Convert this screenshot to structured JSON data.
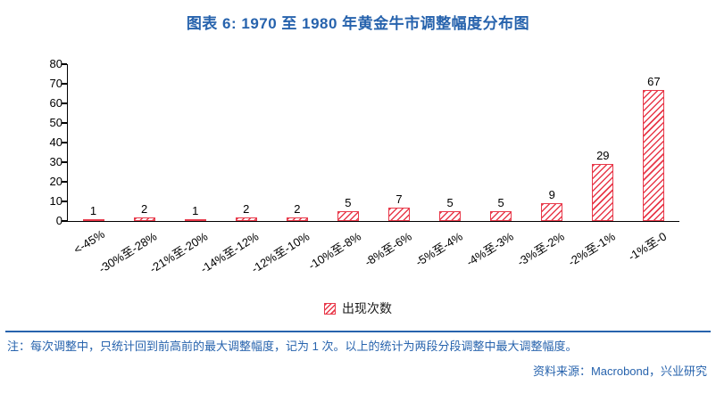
{
  "title": "图表 6:  1970 至 1980 年黄金牛市调整幅度分布图",
  "chart_data": {
    "type": "bar",
    "title": "图表 6:  1970 至 1980 年黄金牛市调整幅度分布图",
    "categories": [
      "<-45%",
      "-30%至-28%",
      "-21%至-20%",
      "-14%至-12%",
      "-12%至-10%",
      "-10%至-8%",
      "-8%至-6%",
      "-5%至-4%",
      "-4%至-3%",
      "-3%至-2%",
      "-2%至-1%",
      "-1%至-0"
    ],
    "values": [
      1,
      2,
      1,
      2,
      2,
      5,
      7,
      5,
      5,
      9,
      29,
      67
    ],
    "xlabel": "",
    "ylabel": "",
    "ylim": [
      0,
      80
    ],
    "ytick_step": 10,
    "grid": false,
    "legend": [
      "出现次数"
    ],
    "legend_position": "bottom",
    "bar_color": "#E8394A"
  },
  "footer": {
    "note": "注：每次调整中，只统计回到前高前的最大调整幅度，记为 1 次。以上的统计为两段分段调整中最大调整幅度。",
    "source": "资料来源：Macrobond，兴业研究"
  },
  "colors": {
    "accent_blue": "#2763AD",
    "bar_red": "#E8394A"
  }
}
